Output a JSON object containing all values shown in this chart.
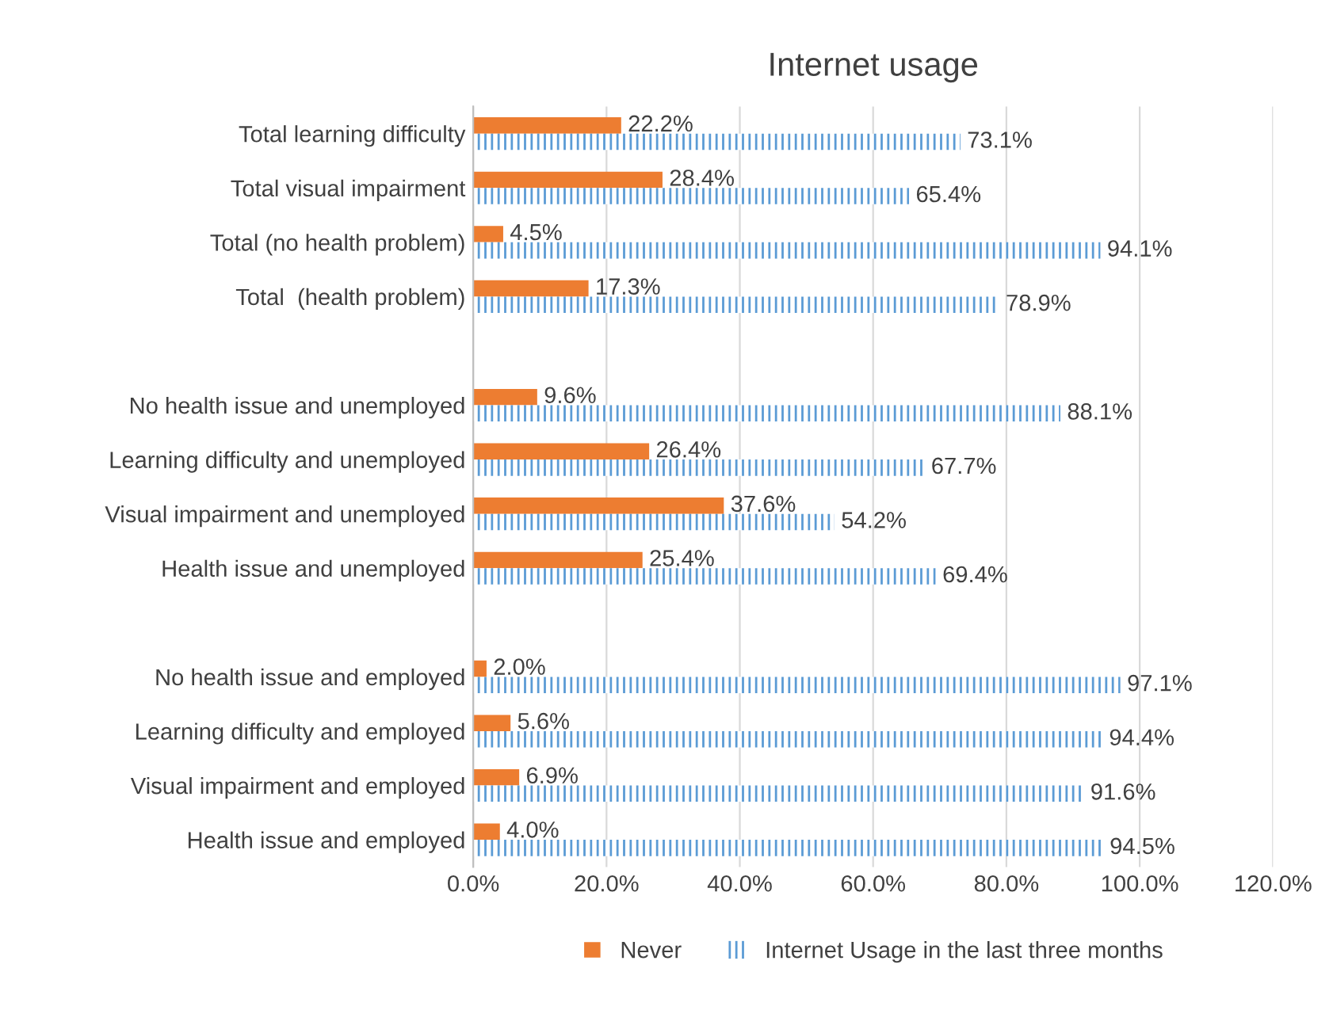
{
  "chart_data": {
    "type": "bar",
    "orientation": "horizontal",
    "title": "Internet usage",
    "categories": [
      "Total learning difficulty",
      "Total visual impairment",
      "Total (no health problem)",
      "Total  (health problem)",
      null,
      "No health issue and unemployed",
      "Learning difficulty and unemployed",
      "Visual impairment and unemployed",
      "Health issue and unemployed",
      null,
      "No health issue and employed",
      "Learning difficulty and employed",
      "Visual impairment and employed",
      "Health issue and employed"
    ],
    "series": [
      {
        "name": "Never",
        "color": "#ed7d31",
        "values": [
          22.2,
          28.4,
          4.5,
          17.3,
          null,
          9.6,
          26.4,
          37.6,
          25.4,
          null,
          2.0,
          5.6,
          6.9,
          4.0
        ],
        "value_labels": [
          "22.2%",
          "28.4%",
          "4.5%",
          "17.3%",
          null,
          "9.6%",
          "26.4%",
          "37.6%",
          "25.4%",
          null,
          "2.0%",
          "5.6%",
          "6.9%",
          "4.0%"
        ]
      },
      {
        "name": "Internet Usage in the last three months",
        "color": "#5b9bd5",
        "values": [
          73.1,
          65.4,
          94.1,
          78.9,
          null,
          88.1,
          67.7,
          54.2,
          69.4,
          null,
          97.1,
          94.4,
          91.6,
          94.5
        ],
        "value_labels": [
          "73.1%",
          "65.4%",
          "94.1%",
          "78.9%",
          null,
          "88.1%",
          "67.7%",
          "54.2%",
          "69.4%",
          null,
          "97.1%",
          "94.4%",
          "91.6%",
          "94.5%"
        ]
      }
    ],
    "xlim": [
      0,
      120
    ],
    "xticks": [
      {
        "value": 0,
        "label": "0.0%"
      },
      {
        "value": 20,
        "label": "20.0%"
      },
      {
        "value": 40,
        "label": "40.0%"
      },
      {
        "value": 60,
        "label": "60.0%"
      },
      {
        "value": 80,
        "label": "80.0%"
      },
      {
        "value": 100,
        "label": "100.0%"
      },
      {
        "value": 120,
        "label": "120.0%"
      }
    ],
    "grid": "x",
    "legend": "bottom"
  }
}
